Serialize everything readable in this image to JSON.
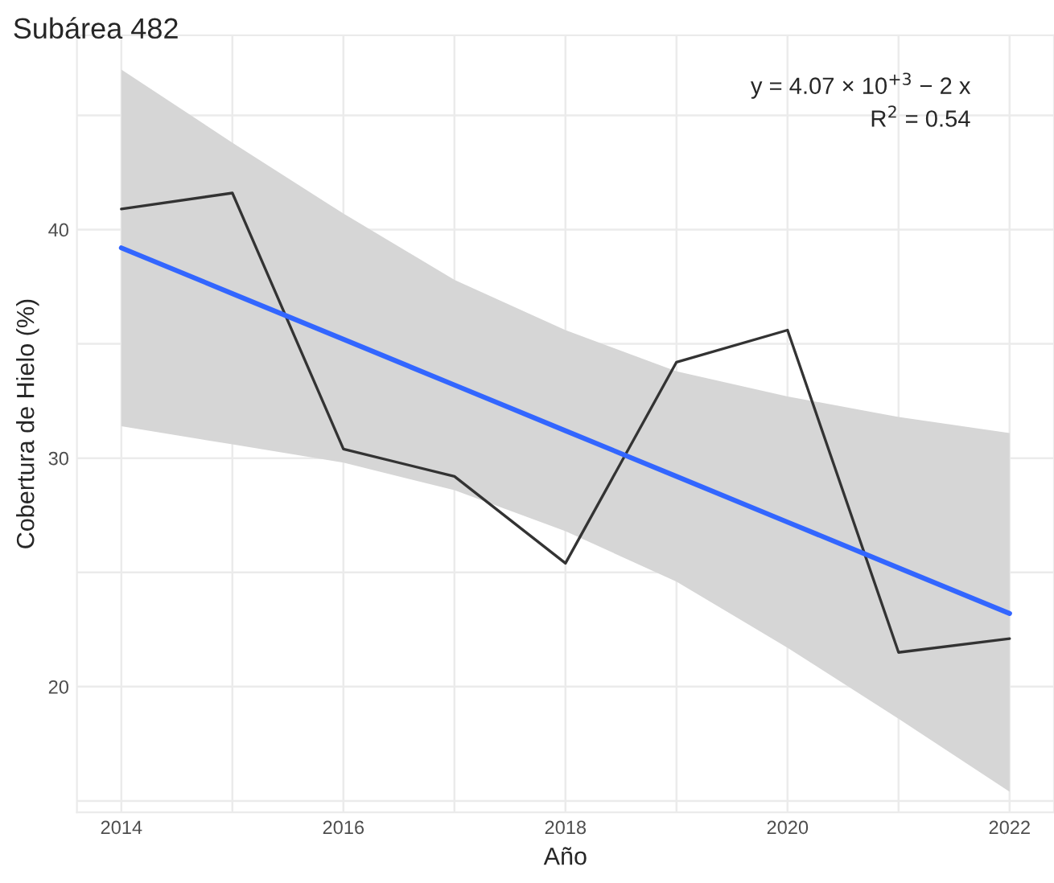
{
  "chart_data": {
    "type": "line",
    "title": "Subárea 482",
    "xlabel": "Año",
    "ylabel": "Cobertura de Hielo (%)",
    "annotations": [
      "y = 4.07 × 10$^{+3}$ − 2 x",
      "R$^{2}$ = 0.54"
    ],
    "x": [
      2014,
      2015,
      2016,
      2017,
      2018,
      2019,
      2020,
      2021,
      2022
    ],
    "series": [
      {
        "color": "#333333",
        "values": [
          40.9,
          41.6,
          30.4,
          29.2,
          25.4,
          34.2,
          35.6,
          21.5,
          22.1
        ]
      },
      {
        "color": "#3366ff",
        "values": [
          39.2,
          37.2,
          35.2,
          33.2,
          31.2,
          29.2,
          27.2,
          25.2,
          23.2
        ],
        "lower": [
          31.4,
          30.6,
          29.8,
          28.6,
          26.8,
          24.6,
          21.7,
          18.6,
          15.4
        ],
        "upper": [
          47.0,
          43.8,
          40.7,
          37.8,
          35.6,
          33.8,
          32.7,
          31.8,
          31.1
        ]
      }
    ],
    "xlim": [
      2013.6,
      2022.4
    ],
    "ylim": [
      14.5,
      48.5
    ],
    "xticks": [
      2014,
      {
        "value": 2015,
        "label": null
      },
      2016,
      {
        "value": 2017,
        "label": null
      },
      2018,
      {
        "value": 2019,
        "label": null
      },
      2020,
      {
        "value": 2021,
        "label": null
      },
      2022
    ],
    "yticks": [
      {
        "value": 15,
        "label": null
      },
      20,
      {
        "value": 25,
        "label": null
      },
      30,
      {
        "value": 35,
        "label": null
      },
      40,
      {
        "value": 45,
        "label": null
      }
    ],
    "grid": true,
    "legend": false
  }
}
